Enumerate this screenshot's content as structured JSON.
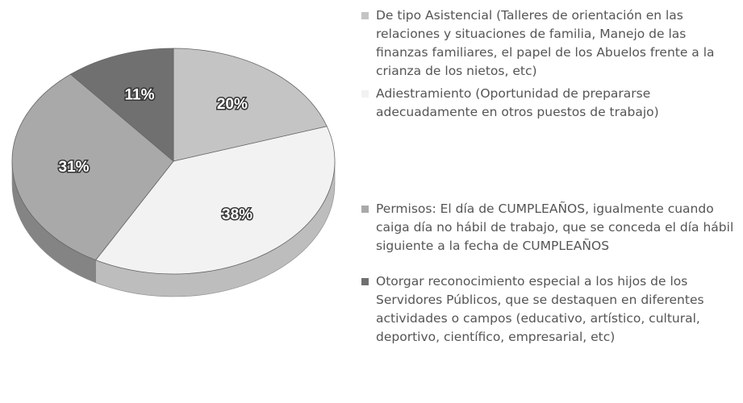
{
  "chart_data": {
    "type": "pie",
    "categories": [
      "De tipo Asistencial (Talleres de orientación en las relaciones y situaciones de familia, Manejo de las finanzas familiares, el papel de los Abuelos frente a la crianza de los nietos, etc)",
      "Adiestramiento (Oportunidad de prepararse adecuadamente en otros puestos de trabajo)",
      "Permisos: El día de CUMPLEAÑOS, igualmente cuando caiga día no hábil de trabajo, que se conceda el día hábil siguiente a la fecha de CUMPLEAÑOS",
      "Otorgar reconocimiento especial a los hijos de los Servidores Públicos, que se destaquen en diferentes actividades o campos (educativo, artístico, cultural, deportivo, científico, empresarial, etc)"
    ],
    "values": [
      20,
      38,
      31,
      11
    ],
    "value_labels": [
      "20%",
      "38%",
      "31%",
      "11%"
    ],
    "colors": [
      "#c4c4c4",
      "#f2f2f2",
      "#a9a9a9",
      "#707070"
    ]
  }
}
